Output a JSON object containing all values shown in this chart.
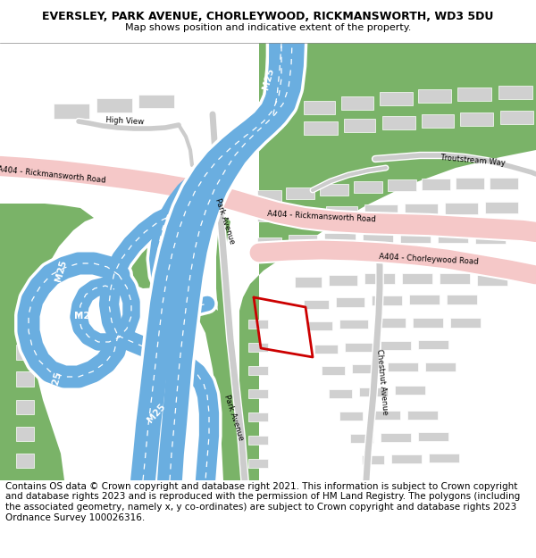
{
  "title": "EVERSLEY, PARK AVENUE, CHORLEYWOOD, RICKMANSWORTH, WD3 5DU",
  "subtitle": "Map shows position and indicative extent of the property.",
  "footer": "Contains OS data © Crown copyright and database right 2021. This information is subject to Crown copyright and database rights 2023 and is reproduced with the permission of HM Land Registry. The polygons (including the associated geometry, namely x, y co-ordinates) are subject to Crown copyright and database rights 2023 Ordnance Survey 100026316.",
  "green": "#7ab368",
  "blue": "#6aaee0",
  "pink": "#f5c8c8",
  "grey_bld": "#d0d0d0",
  "white": "#ffffff",
  "red": "#cc0000",
  "black": "#000000",
  "map_bg": "#ffffff",
  "title_fs": 9,
  "sub_fs": 8,
  "footer_fs": 7.5,
  "lbl_fs": 6.2,
  "m25_fs": 7.5
}
